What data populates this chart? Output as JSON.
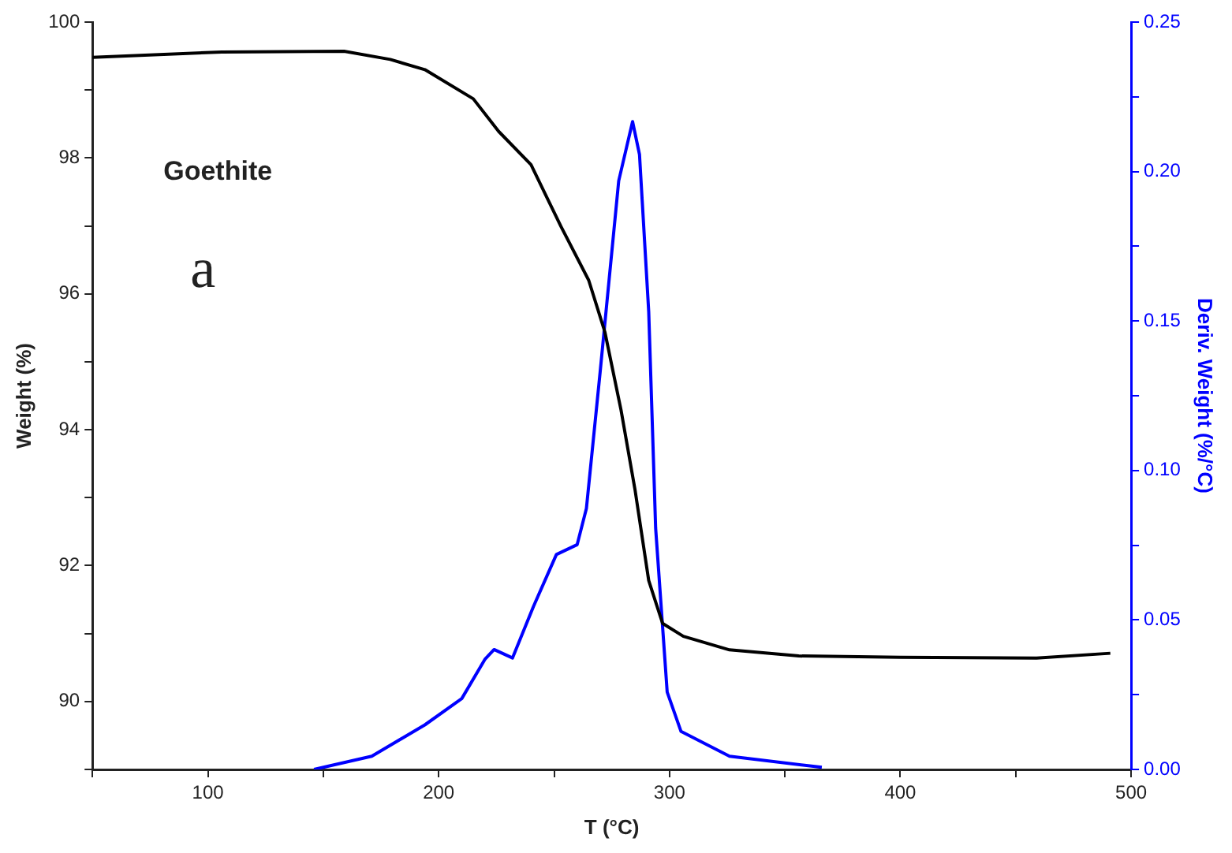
{
  "chart_data": {
    "type": "line",
    "xlabel": "T (°C)",
    "ylabel": "Weight (%)",
    "y2label": "Deriv. Weight (%/°C)",
    "annotations": [
      "Goethite",
      "a"
    ],
    "xlim": [
      50,
      500
    ],
    "xticks": [
      {
        "value": 50,
        "label": null
      },
      100,
      {
        "value": 150,
        "label": null
      },
      200,
      {
        "value": 250,
        "label": null
      },
      300,
      {
        "value": 350,
        "label": null
      },
      400,
      {
        "value": 450,
        "label": null
      },
      500
    ],
    "ylim": [
      89,
      100
    ],
    "yticks": [
      {
        "value": 89,
        "label": null
      },
      90,
      {
        "value": 91,
        "label": null
      },
      92,
      {
        "value": 93,
        "label": null
      },
      94,
      {
        "value": 95,
        "label": null
      },
      96,
      {
        "value": 97,
        "label": null
      },
      98,
      {
        "value": 99,
        "label": null
      },
      100
    ],
    "y2lim": [
      0,
      0.25
    ],
    "y2ticks": [
      {
        "value": 0,
        "label": "0.00"
      },
      {
        "value": 0.025,
        "label": null
      },
      {
        "value": 0.05,
        "label": "0.05"
      },
      {
        "value": 0.075,
        "label": null
      },
      {
        "value": 0.1,
        "label": "0.10"
      },
      {
        "value": 0.125,
        "label": null
      },
      {
        "value": 0.15,
        "label": "0.15"
      },
      {
        "value": 0.175,
        "label": null
      },
      {
        "value": 0.2,
        "label": "0.20"
      },
      {
        "value": 0.225,
        "label": null
      },
      {
        "value": 0.25,
        "label": "0.25"
      }
    ],
    "grid": false,
    "legend": false,
    "marker": "none",
    "line_style": "solid",
    "series": [
      {
        "color": "#000000",
        "x": [
          50,
          106,
          159,
          179,
          194,
          215,
          226,
          240,
          253,
          265,
          272,
          279,
          285,
          291,
          297,
          306,
          326,
          356,
          400,
          459,
          491
        ],
        "values": [
          99.48,
          99.56,
          99.57,
          99.45,
          99.3,
          98.87,
          98.39,
          97.9,
          96.99,
          96.2,
          95.44,
          94.29,
          93.13,
          91.78,
          91.15,
          90.96,
          90.76,
          90.67,
          90.65,
          90.64,
          90.71
        ]
      },
      {
        "color": "#0000ff",
        "axis": "y2",
        "x": [
          146,
          171,
          194,
          210,
          220,
          224,
          232,
          241,
          251,
          260,
          264,
          270,
          278,
          284,
          287,
          291,
          294,
          299,
          305,
          326,
          366
        ],
        "values": [
          0,
          0.0044,
          0.0149,
          0.0237,
          0.0368,
          0.0401,
          0.0373,
          0.0544,
          0.0719,
          0.0752,
          0.0873,
          0.1333,
          0.1969,
          0.2167,
          0.2057,
          0.1531,
          0.0807,
          0.0259,
          0.0127,
          0.0044,
          0.0007
        ]
      }
    ]
  }
}
